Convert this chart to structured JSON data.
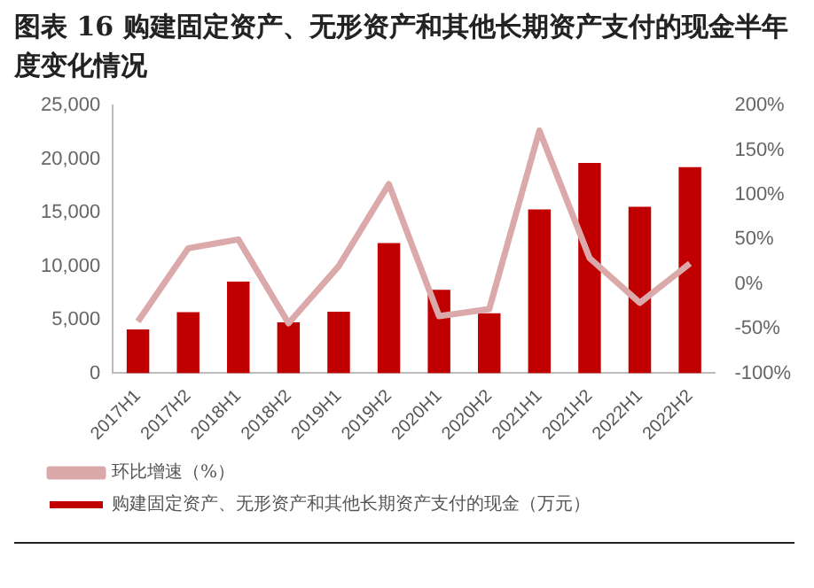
{
  "chart_data": {
    "type": "bar",
    "title": "图表 16 购建固定资产、无形资产和其他长期资产支付的现金半年度变化情况",
    "categories": [
      "2017H1",
      "2017H2",
      "2018H1",
      "2018H2",
      "2019H1",
      "2019H2",
      "2020H1",
      "2020H2",
      "2021H1",
      "2021H2",
      "2022H1",
      "2022H2"
    ],
    "series": [
      {
        "name": "购建固定资产、无形资产和其他长期资产支付的现金（万元）",
        "color": "#c00000",
        "values": [
          4100,
          5700,
          8550,
          4750,
          5750,
          12150,
          7800,
          5600,
          15300,
          19650,
          15550,
          19250
        ]
      },
      {
        "name": "环比增速（%）",
        "type": "line",
        "axis": "y2",
        "color": "#dba9a9",
        "values": [
          -42,
          40,
          50,
          -44,
          20,
          112,
          -36,
          -28,
          172,
          29,
          -21,
          23
        ]
      }
    ],
    "ylim": [
      0,
      25000
    ],
    "yticks": [
      {
        "value": 0,
        "label": "0"
      },
      {
        "value": 5000,
        "label": "5,000"
      },
      {
        "value": 10000,
        "label": "10,000"
      },
      {
        "value": 15000,
        "label": "15,000"
      },
      {
        "value": 20000,
        "label": "20,000"
      },
      {
        "value": 25000,
        "label": "25,000"
      }
    ],
    "y2lim": [
      -100,
      200
    ],
    "y2ticks": [
      {
        "value": -100,
        "label": "-100%"
      },
      {
        "value": -50,
        "label": "-50%"
      },
      {
        "value": 0,
        "label": "0%"
      },
      {
        "value": 50,
        "label": "50%"
      },
      {
        "value": 100,
        "label": "100%"
      },
      {
        "value": 150,
        "label": "150%"
      },
      {
        "value": 200,
        "label": "200%"
      }
    ],
    "legend": "bottom",
    "marker": "none",
    "line_style": "solid"
  }
}
